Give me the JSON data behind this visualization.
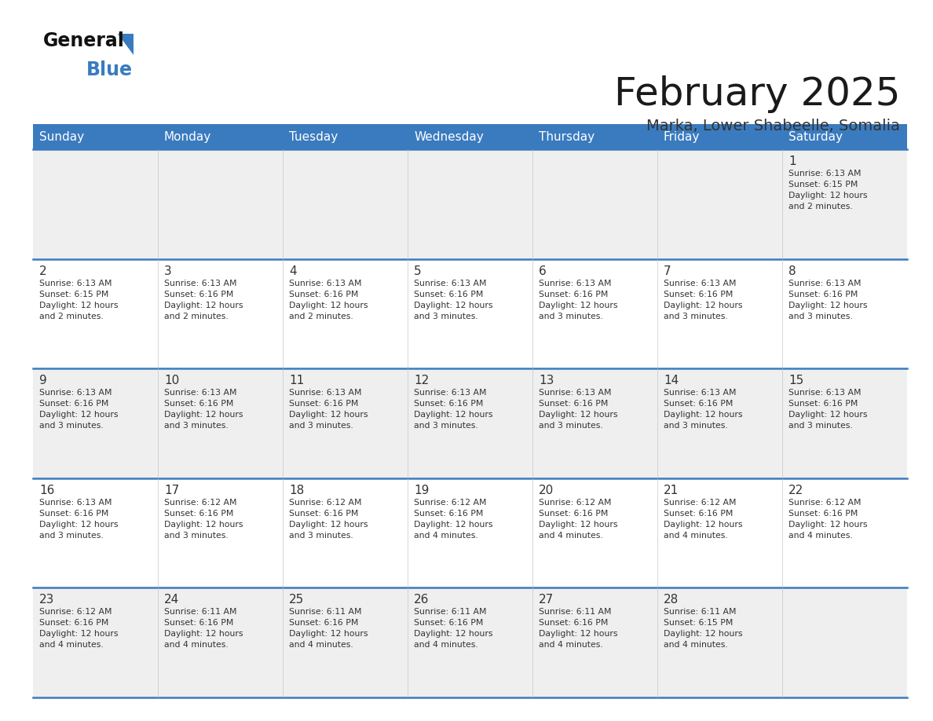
{
  "title": "February 2025",
  "subtitle": "Marka, Lower Shabeelle, Somalia",
  "header_color": "#3a7bbf",
  "header_text_color": "#ffffff",
  "cell_bg_even": "#efefef",
  "cell_bg_odd": "#ffffff",
  "day_number_color": "#333333",
  "info_text_color": "#333333",
  "grid_line_color": "#3a7bbf",
  "days_of_week": [
    "Sunday",
    "Monday",
    "Tuesday",
    "Wednesday",
    "Thursday",
    "Friday",
    "Saturday"
  ],
  "weeks": [
    [
      {
        "day": null,
        "info": null
      },
      {
        "day": null,
        "info": null
      },
      {
        "day": null,
        "info": null
      },
      {
        "day": null,
        "info": null
      },
      {
        "day": null,
        "info": null
      },
      {
        "day": null,
        "info": null
      },
      {
        "day": 1,
        "info": "Sunrise: 6:13 AM\nSunset: 6:15 PM\nDaylight: 12 hours\nand 2 minutes."
      }
    ],
    [
      {
        "day": 2,
        "info": "Sunrise: 6:13 AM\nSunset: 6:15 PM\nDaylight: 12 hours\nand 2 minutes."
      },
      {
        "day": 3,
        "info": "Sunrise: 6:13 AM\nSunset: 6:16 PM\nDaylight: 12 hours\nand 2 minutes."
      },
      {
        "day": 4,
        "info": "Sunrise: 6:13 AM\nSunset: 6:16 PM\nDaylight: 12 hours\nand 2 minutes."
      },
      {
        "day": 5,
        "info": "Sunrise: 6:13 AM\nSunset: 6:16 PM\nDaylight: 12 hours\nand 3 minutes."
      },
      {
        "day": 6,
        "info": "Sunrise: 6:13 AM\nSunset: 6:16 PM\nDaylight: 12 hours\nand 3 minutes."
      },
      {
        "day": 7,
        "info": "Sunrise: 6:13 AM\nSunset: 6:16 PM\nDaylight: 12 hours\nand 3 minutes."
      },
      {
        "day": 8,
        "info": "Sunrise: 6:13 AM\nSunset: 6:16 PM\nDaylight: 12 hours\nand 3 minutes."
      }
    ],
    [
      {
        "day": 9,
        "info": "Sunrise: 6:13 AM\nSunset: 6:16 PM\nDaylight: 12 hours\nand 3 minutes."
      },
      {
        "day": 10,
        "info": "Sunrise: 6:13 AM\nSunset: 6:16 PM\nDaylight: 12 hours\nand 3 minutes."
      },
      {
        "day": 11,
        "info": "Sunrise: 6:13 AM\nSunset: 6:16 PM\nDaylight: 12 hours\nand 3 minutes."
      },
      {
        "day": 12,
        "info": "Sunrise: 6:13 AM\nSunset: 6:16 PM\nDaylight: 12 hours\nand 3 minutes."
      },
      {
        "day": 13,
        "info": "Sunrise: 6:13 AM\nSunset: 6:16 PM\nDaylight: 12 hours\nand 3 minutes."
      },
      {
        "day": 14,
        "info": "Sunrise: 6:13 AM\nSunset: 6:16 PM\nDaylight: 12 hours\nand 3 minutes."
      },
      {
        "day": 15,
        "info": "Sunrise: 6:13 AM\nSunset: 6:16 PM\nDaylight: 12 hours\nand 3 minutes."
      }
    ],
    [
      {
        "day": 16,
        "info": "Sunrise: 6:13 AM\nSunset: 6:16 PM\nDaylight: 12 hours\nand 3 minutes."
      },
      {
        "day": 17,
        "info": "Sunrise: 6:12 AM\nSunset: 6:16 PM\nDaylight: 12 hours\nand 3 minutes."
      },
      {
        "day": 18,
        "info": "Sunrise: 6:12 AM\nSunset: 6:16 PM\nDaylight: 12 hours\nand 3 minutes."
      },
      {
        "day": 19,
        "info": "Sunrise: 6:12 AM\nSunset: 6:16 PM\nDaylight: 12 hours\nand 4 minutes."
      },
      {
        "day": 20,
        "info": "Sunrise: 6:12 AM\nSunset: 6:16 PM\nDaylight: 12 hours\nand 4 minutes."
      },
      {
        "day": 21,
        "info": "Sunrise: 6:12 AM\nSunset: 6:16 PM\nDaylight: 12 hours\nand 4 minutes."
      },
      {
        "day": 22,
        "info": "Sunrise: 6:12 AM\nSunset: 6:16 PM\nDaylight: 12 hours\nand 4 minutes."
      }
    ],
    [
      {
        "day": 23,
        "info": "Sunrise: 6:12 AM\nSunset: 6:16 PM\nDaylight: 12 hours\nand 4 minutes."
      },
      {
        "day": 24,
        "info": "Sunrise: 6:11 AM\nSunset: 6:16 PM\nDaylight: 12 hours\nand 4 minutes."
      },
      {
        "day": 25,
        "info": "Sunrise: 6:11 AM\nSunset: 6:16 PM\nDaylight: 12 hours\nand 4 minutes."
      },
      {
        "day": 26,
        "info": "Sunrise: 6:11 AM\nSunset: 6:16 PM\nDaylight: 12 hours\nand 4 minutes."
      },
      {
        "day": 27,
        "info": "Sunrise: 6:11 AM\nSunset: 6:16 PM\nDaylight: 12 hours\nand 4 minutes."
      },
      {
        "day": 28,
        "info": "Sunrise: 6:11 AM\nSunset: 6:15 PM\nDaylight: 12 hours\nand 4 minutes."
      },
      {
        "day": null,
        "info": null
      }
    ]
  ]
}
